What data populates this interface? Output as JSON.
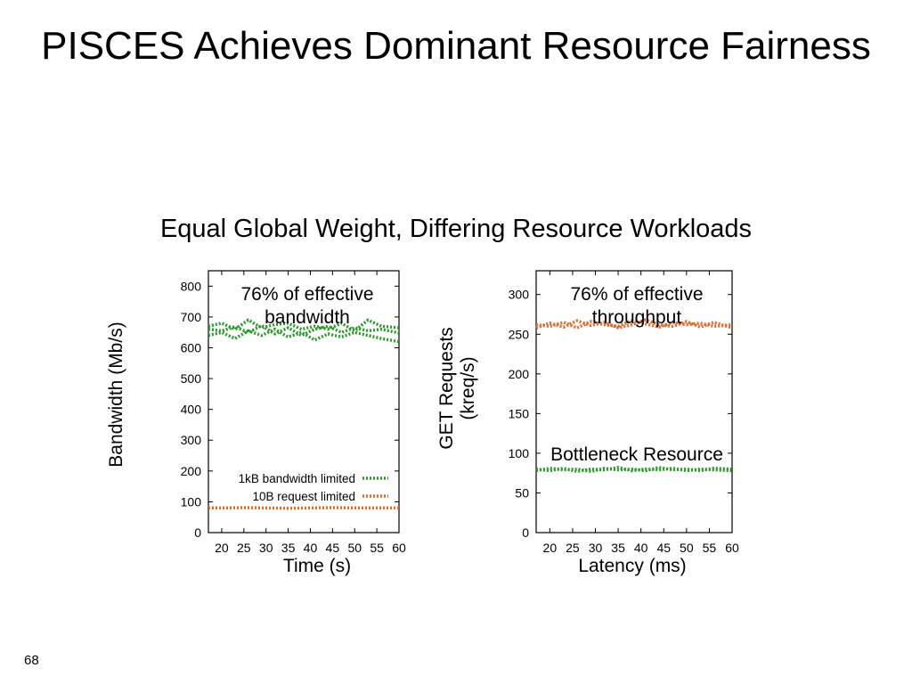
{
  "slide": {
    "title": "PISCES Achieves Dominant Resource Fairness",
    "subtitle": "Equal Global Weight, Differing Resource Workloads",
    "page_number": "68"
  },
  "chart_data": [
    {
      "type": "line",
      "title": "",
      "xlabel": "Time (s)",
      "ylabel": "Bandwidth (Mb/s)",
      "xlim": [
        17,
        60
      ],
      "ylim": [
        0,
        850
      ],
      "xticks": [
        20,
        25,
        30,
        35,
        40,
        45,
        50,
        55,
        60
      ],
      "yticks": [
        0,
        100,
        200,
        300,
        400,
        500,
        600,
        700,
        800
      ],
      "grid": false,
      "legend_position": "lower-right",
      "annotation": "76% of effective bandwidth",
      "series": [
        {
          "name": "1kB bandwidth limited",
          "color": "#2a9a2a",
          "style": "dotted",
          "x": [
            17,
            20,
            23,
            26,
            29,
            32,
            35,
            38,
            41,
            44,
            47,
            50,
            53,
            56,
            60
          ],
          "y": [
            660,
            655,
            668,
            650,
            672,
            645,
            665,
            640,
            660,
            670,
            650,
            665,
            655,
            660,
            648
          ]
        },
        {
          "name": "1kB bandwidth limited",
          "color": "#2a9a2a",
          "style": "dotted",
          "legend": false,
          "x": [
            17,
            20,
            23,
            26,
            29,
            32,
            35,
            38,
            41,
            44,
            47,
            50,
            53,
            56,
            60
          ],
          "y": [
            640,
            650,
            630,
            655,
            640,
            660,
            635,
            650,
            625,
            645,
            635,
            650,
            640,
            630,
            620
          ]
        },
        {
          "name": "1kB bandwidth limited",
          "color": "#2a9a2a",
          "style": "dotted",
          "legend": false,
          "x": [
            17,
            20,
            23,
            26,
            29,
            32,
            35,
            38,
            41,
            44,
            47,
            50,
            53,
            56,
            60
          ],
          "y": [
            670,
            680,
            660,
            690,
            665,
            675,
            680,
            660,
            670,
            660,
            680,
            655,
            690,
            670,
            665
          ]
        },
        {
          "name": "10B request limited",
          "color": "#e06a2a",
          "style": "dotted",
          "x": [
            17,
            20,
            25,
            30,
            35,
            40,
            45,
            50,
            55,
            60
          ],
          "y": [
            80,
            80,
            81,
            80,
            79,
            80,
            81,
            80,
            80,
            80
          ]
        }
      ]
    },
    {
      "type": "line",
      "title": "",
      "xlabel": "Latency (ms)",
      "ylabel": "GET Requests (kreq/s)",
      "xlim": [
        17,
        60
      ],
      "ylim": [
        0,
        330
      ],
      "xticks": [
        20,
        25,
        30,
        35,
        40,
        45,
        50,
        55,
        60
      ],
      "yticks": [
        0,
        50,
        100,
        150,
        200,
        250,
        300
      ],
      "grid": false,
      "legend_position": "none",
      "annotations": [
        "76% of effective throughput",
        "Bottleneck Resource"
      ],
      "series": [
        {
          "name": "",
          "color": "#e06a2a",
          "style": "dotted",
          "x": [
            17,
            20,
            23,
            26,
            29,
            32,
            35,
            38,
            41,
            44,
            47,
            50,
            53,
            56,
            60
          ],
          "y": [
            262,
            260,
            265,
            258,
            266,
            262,
            260,
            267,
            263,
            259,
            265,
            262,
            264,
            260,
            262
          ]
        },
        {
          "name": "",
          "color": "#e06a2a",
          "style": "dotted",
          "x": [
            17,
            20,
            23,
            26,
            29,
            32,
            35,
            38,
            41,
            44,
            47,
            50,
            53,
            56,
            60
          ],
          "y": [
            258,
            264,
            259,
            267,
            261,
            265,
            258,
            262,
            268,
            262,
            260,
            266,
            259,
            265,
            258
          ]
        },
        {
          "name": "",
          "color": "#2a9a2a",
          "style": "dotted",
          "x": [
            17,
            20,
            23,
            26,
            29,
            32,
            35,
            38,
            41,
            44,
            47,
            50,
            53,
            56,
            60
          ],
          "y": [
            80,
            78,
            81,
            77,
            80,
            79,
            82,
            78,
            80,
            79,
            81,
            78,
            80,
            79,
            78
          ]
        },
        {
          "name": "",
          "color": "#2a9a2a",
          "style": "dotted",
          "x": [
            17,
            20,
            23,
            26,
            29,
            32,
            35,
            38,
            41,
            44,
            47,
            50,
            53,
            56,
            60
          ],
          "y": [
            78,
            81,
            79,
            80,
            77,
            81,
            79,
            80,
            78,
            82,
            79,
            80,
            78,
            81,
            80
          ]
        }
      ]
    }
  ]
}
